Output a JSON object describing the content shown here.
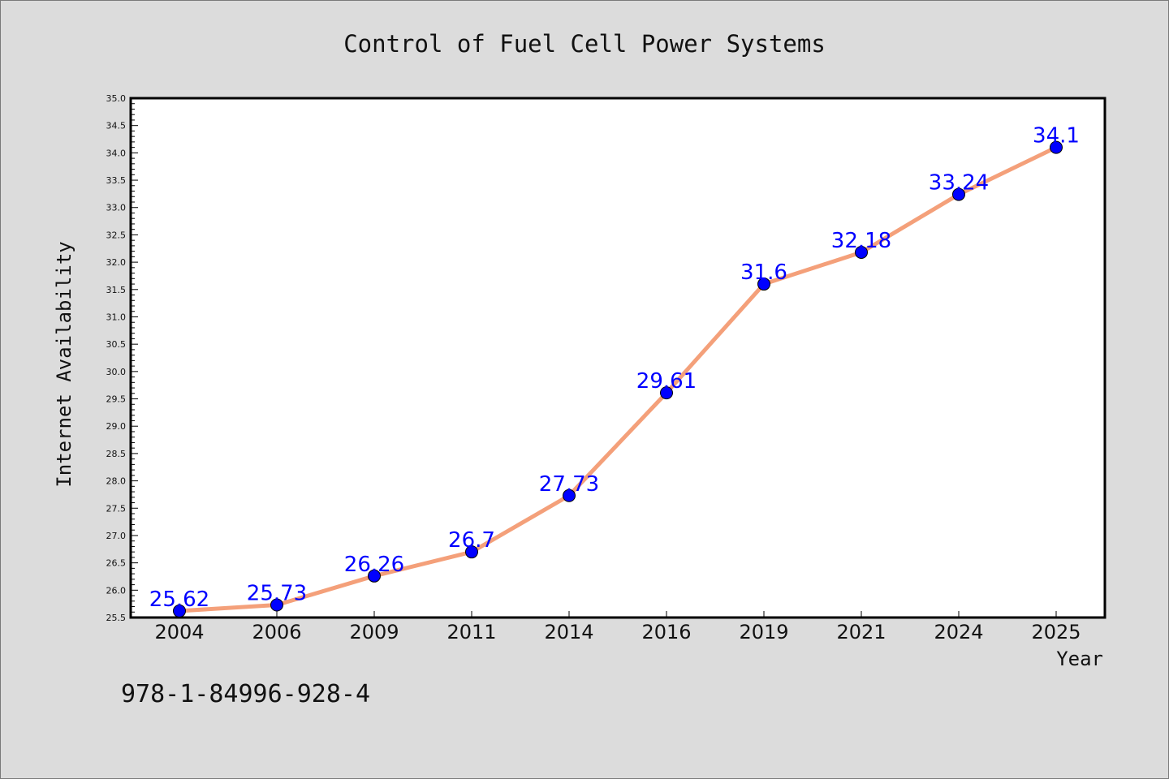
{
  "chart_data": {
    "type": "line",
    "title": "Control of Fuel Cell Power Systems",
    "xlabel": "Year",
    "ylabel": "Internet Availability",
    "categories": [
      "2004",
      "2006",
      "2009",
      "2011",
      "2014",
      "2016",
      "2019",
      "2021",
      "2024",
      "2025"
    ],
    "series": [
      {
        "values": [
          25.62,
          25.73,
          26.26,
          26.7,
          27.73,
          29.61,
          31.6,
          32.18,
          33.24,
          34.1
        ],
        "labels": [
          "25.62",
          "25.73",
          "26.26",
          "26.7",
          "27.73",
          "29.61",
          "31.6",
          "32.18",
          "33.24",
          "34.1"
        ]
      }
    ],
    "ylim": [
      25.5,
      35.0
    ],
    "yticks": [
      "25.5",
      "26.0",
      "26.5",
      "27.0",
      "27.5",
      "28.0",
      "28.5",
      "29.0",
      "29.5",
      "30.0",
      "30.5",
      "31.0",
      "31.5",
      "32.0",
      "32.5",
      "33.0",
      "33.5",
      "34.0",
      "34.5",
      "35.0"
    ],
    "ytick_values": [
      25.5,
      26.0,
      26.5,
      27.0,
      27.5,
      28.0,
      28.5,
      29.0,
      29.5,
      30.0,
      30.5,
      31.0,
      31.5,
      32.0,
      32.5,
      33.0,
      33.5,
      34.0,
      34.5,
      35.0
    ],
    "grid": false,
    "legend": "none",
    "colors": {
      "line": "#f4a07a",
      "marker": "#0000ff",
      "data_label": "#0000ff",
      "background": "#dcdcdc",
      "plot_background": "#ffffff"
    }
  },
  "footnote": "978-1-84996-928-4"
}
